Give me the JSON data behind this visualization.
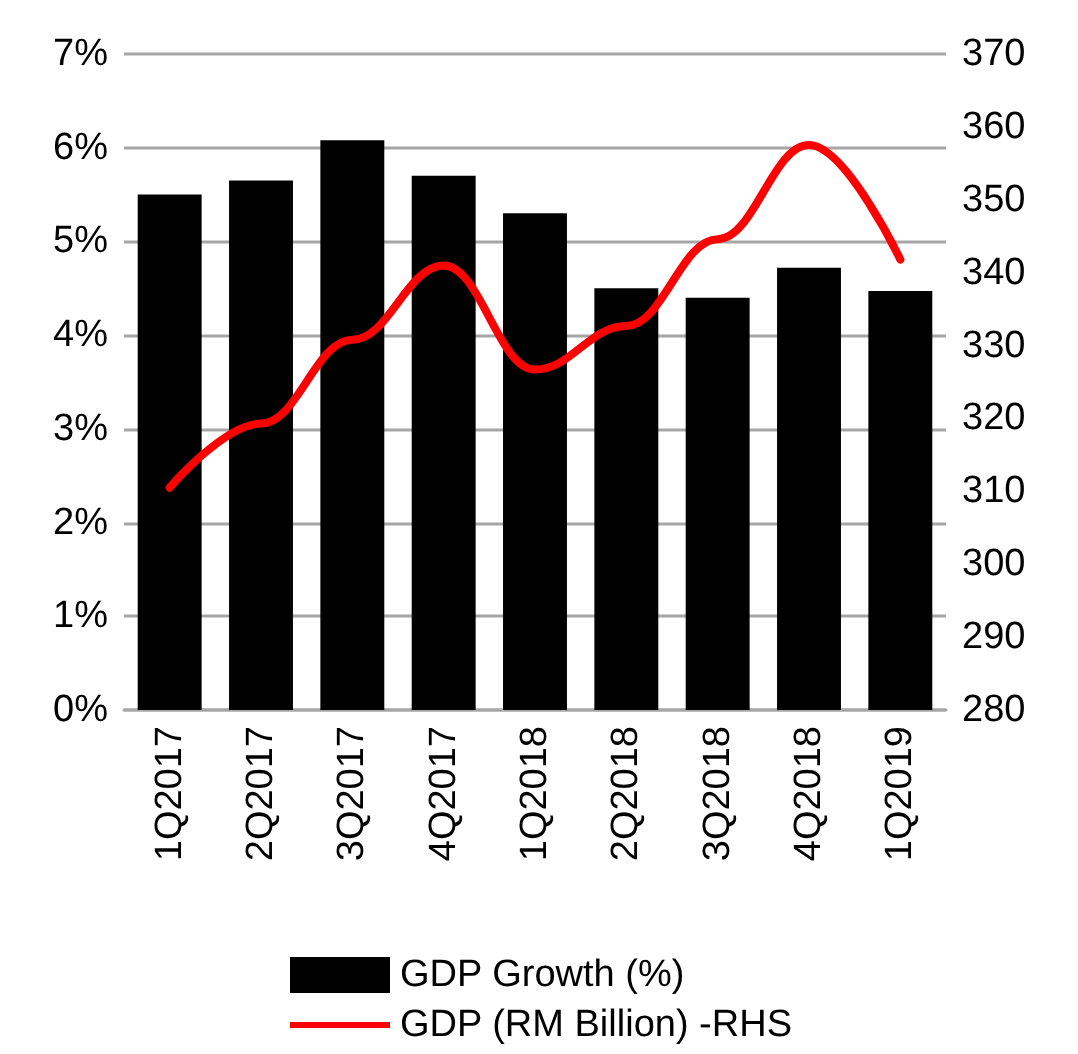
{
  "chart_data": {
    "type": "bar",
    "categories": [
      "1Q2017",
      "2Q2017",
      "3Q2017",
      "4Q2017",
      "1Q2018",
      "2Q2018",
      "3Q2018",
      "4Q2018",
      "1Q2019"
    ],
    "series": [
      {
        "name": "GDP Growth (%)",
        "color": "#000000",
        "values": [
          5.5,
          5.65,
          6.08,
          5.7,
          5.3,
          4.5,
          4.4,
          4.72,
          4.47
        ]
      },
      {
        "name": "GDP (RM Billion) -RHS",
        "type": "line",
        "axis": "y2",
        "color": "#ff0000",
        "values": [
          310.5,
          319.3,
          330.8,
          341,
          326.7,
          332.7,
          344.6,
          357.5,
          341.8
        ]
      }
    ],
    "ylim": [
      0,
      7
    ],
    "yticks": [
      {
        "value": 0,
        "label": "0%"
      },
      {
        "value": 1,
        "label": "1%"
      },
      {
        "value": 2,
        "label": "2%"
      },
      {
        "value": 3,
        "label": "3%"
      },
      {
        "value": 4,
        "label": "4%"
      },
      {
        "value": 5,
        "label": "5%"
      },
      {
        "value": 6,
        "label": "6%"
      },
      {
        "value": 7,
        "label": "7%"
      }
    ],
    "y2lim": [
      280,
      370
    ],
    "y2ticks": [
      280,
      290,
      300,
      310,
      320,
      330,
      340,
      350,
      360,
      370
    ],
    "grid": "y",
    "legend": "bottom",
    "marker": "none"
  }
}
